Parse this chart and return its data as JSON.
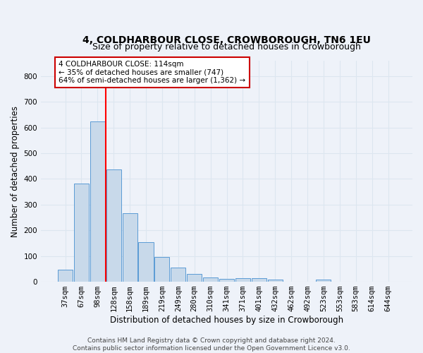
{
  "title": "4, COLDHARBOUR CLOSE, CROWBOROUGH, TN6 1EU",
  "subtitle": "Size of property relative to detached houses in Crowborough",
  "xlabel": "Distribution of detached houses by size in Crowborough",
  "ylabel": "Number of detached properties",
  "bar_labels": [
    "37sqm",
    "67sqm",
    "98sqm",
    "128sqm",
    "158sqm",
    "189sqm",
    "219sqm",
    "249sqm",
    "280sqm",
    "310sqm",
    "341sqm",
    "371sqm",
    "401sqm",
    "432sqm",
    "462sqm",
    "492sqm",
    "523sqm",
    "553sqm",
    "583sqm",
    "614sqm",
    "644sqm"
  ],
  "bar_values": [
    47,
    382,
    625,
    438,
    268,
    153,
    96,
    54,
    30,
    17,
    10,
    14,
    13,
    8,
    0,
    0,
    8,
    0,
    0,
    0,
    0
  ],
  "bar_color": "#c8d9ea",
  "bar_edge_color": "#5b9bd5",
  "grid_color": "#dce6f0",
  "background_color": "#eef2f9",
  "red_line_x": 2.5,
  "annotation_text": "4 COLDHARBOUR CLOSE: 114sqm\n← 35% of detached houses are smaller (747)\n64% of semi-detached houses are larger (1,362) →",
  "annotation_box_color": "#ffffff",
  "annotation_box_edge": "#cc0000",
  "footer_text": "Contains HM Land Registry data © Crown copyright and database right 2024.\nContains public sector information licensed under the Open Government Licence v3.0.",
  "ylim": [
    0,
    860
  ],
  "yticks": [
    0,
    100,
    200,
    300,
    400,
    500,
    600,
    700,
    800
  ],
  "title_fontsize": 10,
  "subtitle_fontsize": 9,
  "axis_label_fontsize": 8.5,
  "tick_fontsize": 7.5,
  "footer_fontsize": 6.5,
  "annotation_fontsize": 7.5
}
